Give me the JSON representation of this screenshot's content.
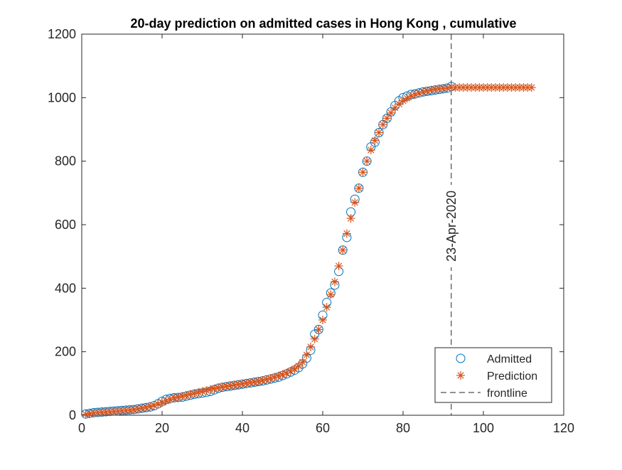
{
  "chart_data": {
    "type": "scatter",
    "title": "20-day prediction on admitted cases in Hong Kong , cumulative",
    "xlabel": "",
    "ylabel": "",
    "xlim": [
      0,
      120
    ],
    "ylim": [
      0,
      1200
    ],
    "xticks": [
      "0",
      "20",
      "40",
      "60",
      "80",
      "100",
      "120"
    ],
    "yticks": [
      "0",
      "200",
      "400",
      "600",
      "800",
      "1000",
      "1200"
    ],
    "grid": false,
    "legend_position": "bottom-right",
    "series": [
      {
        "name": "Admitted",
        "marker": "circle",
        "color": "#0072BD",
        "x_start": 1,
        "values": [
          4,
          6,
          8,
          9,
          10,
          11,
          12,
          13,
          14,
          15,
          16,
          17,
          18,
          20,
          22,
          24,
          26,
          30,
          36,
          44,
          50,
          53,
          55,
          56,
          57,
          60,
          63,
          66,
          68,
          70,
          72,
          75,
          80,
          85,
          88,
          90,
          92,
          94,
          96,
          98,
          100,
          102,
          104,
          106,
          108,
          111,
          114,
          117,
          120,
          125,
          130,
          136,
          142,
          150,
          162,
          180,
          205,
          255,
          270,
          315,
          355,
          385,
          410,
          453,
          520,
          560,
          640,
          680,
          715,
          765,
          800,
          845,
          860,
          890,
          915,
          935,
          955,
          975,
          990,
          1000,
          1005,
          1010,
          1012,
          1015,
          1018,
          1020,
          1022,
          1024,
          1026,
          1028,
          1030,
          1035
        ]
      },
      {
        "name": "Prediction",
        "marker": "asterisk",
        "color": "#D95319",
        "x_start": 1,
        "values": [
          3,
          5,
          7,
          8,
          9,
          10,
          11,
          12,
          13,
          14,
          15,
          16,
          18,
          20,
          22,
          25,
          28,
          31,
          35,
          40,
          45,
          50,
          54,
          57,
          60,
          63,
          66,
          69,
          72,
          75,
          78,
          81,
          84,
          87,
          89,
          91,
          93,
          95,
          97,
          99,
          101,
          103,
          105,
          107,
          110,
          113,
          116,
          120,
          124,
          128,
          133,
          139,
          146,
          155,
          167,
          190,
          215,
          240,
          270,
          300,
          340,
          380,
          420,
          470,
          520,
          572,
          620,
          670,
          715,
          765,
          800,
          835,
          865,
          890,
          915,
          935,
          952,
          968,
          980,
          990,
          998,
          1005,
          1010,
          1014,
          1018,
          1021,
          1024,
          1026,
          1028,
          1029,
          1030,
          1032,
          1032,
          1032,
          1032,
          1032,
          1032,
          1032,
          1032,
          1032,
          1032,
          1032,
          1032,
          1032,
          1032,
          1032,
          1032,
          1032,
          1032,
          1032,
          1032,
          1032
        ]
      },
      {
        "name": "frontline",
        "marker": "dashed-line",
        "color": "#262626",
        "x": 92
      }
    ],
    "annotations": [
      {
        "text": "23-Apr-2020",
        "x": 92
      }
    ]
  }
}
